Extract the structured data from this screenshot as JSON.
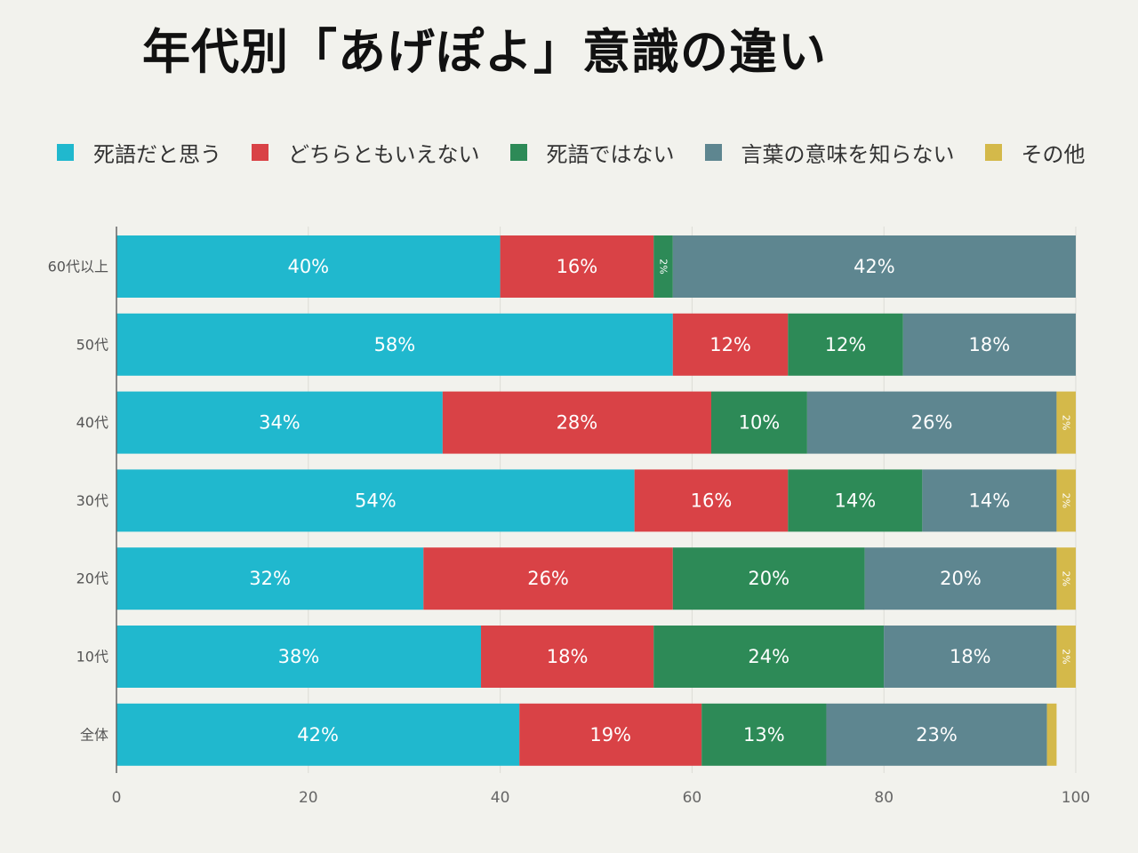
{
  "title": "年代別「あげぽよ」意識の違い",
  "chart_data": {
    "type": "bar",
    "orientation": "horizontal",
    "stacked": true,
    "title": "年代別「あげぽよ」意識の違い",
    "categories": [
      "60代以上",
      "50代",
      "40代",
      "30代",
      "20代",
      "10代",
      "全体"
    ],
    "xlim": [
      0,
      100
    ],
    "xticks": [
      0,
      20,
      40,
      60,
      80,
      100
    ],
    "grid": true,
    "legend_position": "top",
    "series": [
      {
        "name": "死語だと思う",
        "color": "#20b8ce",
        "values": [
          40,
          58,
          34,
          54,
          32,
          38,
          42
        ],
        "labels": [
          "40%",
          "58%",
          "34%",
          "54%",
          "32%",
          "38%",
          "42%"
        ]
      },
      {
        "name": "どちらともいえない",
        "color": "#d94246",
        "values": [
          16,
          12,
          28,
          16,
          26,
          18,
          19
        ],
        "labels": [
          "16%",
          "12%",
          "28%",
          "16%",
          "26%",
          "18%",
          "19%"
        ]
      },
      {
        "name": "死語ではない",
        "color": "#2d8a57",
        "values": [
          2,
          12,
          10,
          14,
          20,
          24,
          13
        ],
        "labels": [
          "2%",
          "12%",
          "10%",
          "14%",
          "20%",
          "24%",
          "13%"
        ]
      },
      {
        "name": "言葉の意味を知らない",
        "color": "#5e8690",
        "values": [
          42,
          18,
          26,
          14,
          20,
          18,
          23
        ],
        "labels": [
          "42%",
          "18%",
          "26%",
          "14%",
          "20%",
          "18%",
          "23%"
        ]
      },
      {
        "name": "その他",
        "color": "#d4b94a",
        "values": [
          0,
          0,
          2,
          2,
          2,
          2,
          1
        ],
        "labels": [
          "",
          "",
          "2%",
          "2%",
          "2%",
          "2%",
          ""
        ]
      }
    ]
  }
}
